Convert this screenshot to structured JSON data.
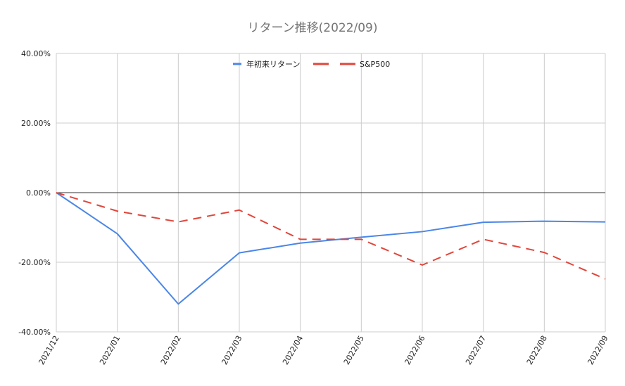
{
  "chart_data": {
    "type": "line",
    "title": "リターン推移(2022/09)",
    "categories": [
      "2021/12",
      "2022/01",
      "2022/02",
      "2022/03",
      "2022/04",
      "2022/05",
      "2022/06",
      "2022/07",
      "2022/08",
      "2022/09"
    ],
    "y_ticks": [
      "40.00%",
      "20.00%",
      "0.00%",
      "-20.00%",
      "-40.00%"
    ],
    "ylim": [
      -40,
      40
    ],
    "y_unit": "%",
    "grid": true,
    "legend_position": "top",
    "series": [
      {
        "name": "年初来リターン",
        "color": "#4a86e8",
        "style": "solid",
        "values": [
          0,
          -11.8,
          -32,
          -17.3,
          -14.5,
          -12.8,
          -11.2,
          -8.5,
          -8.2,
          -8.4
        ]
      },
      {
        "name": "S&P500",
        "color": "#e0463b",
        "style": "dashed",
        "values": [
          0,
          -5.3,
          -8.4,
          -5,
          -13.4,
          -13.4,
          -20.8,
          -13.4,
          -17.2,
          -24.8
        ]
      }
    ]
  }
}
